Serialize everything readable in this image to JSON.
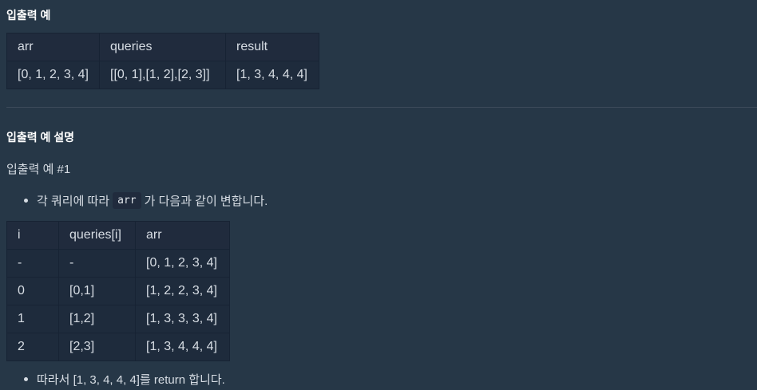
{
  "example_title": "입출력 예",
  "example_table": {
    "headers": [
      "arr",
      "queries",
      "result"
    ],
    "rows": [
      [
        "[0, 1, 2, 3, 4]",
        "[[0, 1],[1, 2],[2, 3]]",
        "[1, 3, 4, 4, 4]"
      ]
    ]
  },
  "explanation_title": "입출력 예 설명",
  "example_subtitle": "입출력 예 #1",
  "bullet1": {
    "prefix": "각 쿼리에 따라",
    "code": "arr",
    "suffix": "가 다음과 같이 변합니다."
  },
  "process_table": {
    "headers": [
      "i",
      "queries[i]",
      "arr"
    ],
    "rows": [
      [
        "-",
        "-",
        "[0, 1, 2, 3, 4]"
      ],
      [
        "0",
        "[0,1]",
        "[1, 2, 2, 3, 4]"
      ],
      [
        "1",
        "[1,2]",
        "[1, 3, 3, 3, 4]"
      ],
      [
        "2",
        "[2,3]",
        "[1, 3, 4, 4, 4]"
      ]
    ]
  },
  "bullet2": "따라서 [1, 3, 4, 4, 4]를 return 합니다."
}
